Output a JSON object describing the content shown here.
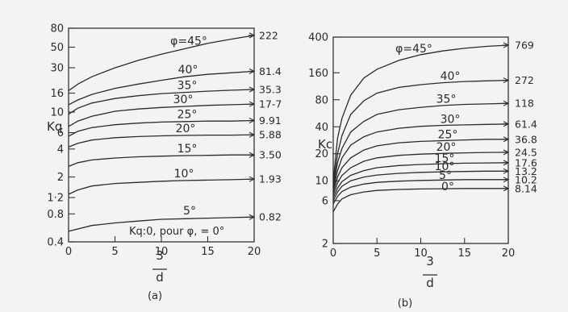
{
  "chart_data": [
    {
      "type": "line",
      "caption": "(a)",
      "ylabel": "Kq",
      "xlabel_num": "3",
      "xlabel_den": "d",
      "xlim": [
        0,
        20
      ],
      "ylim": [
        0.4,
        80
      ],
      "yscale": "log",
      "x_ticks": [
        "0",
        "5",
        "10",
        "15",
        "20"
      ],
      "y_ticks": [
        {
          "value": 80,
          "label": "80"
        },
        {
          "value": 50,
          "label": "50"
        },
        {
          "value": 30,
          "label": "30"
        },
        {
          "value": 16,
          "label": "16"
        },
        {
          "value": 10,
          "label": "10"
        },
        {
          "value": 6,
          "label": "6"
        },
        {
          "value": 4,
          "label": "4"
        },
        {
          "value": 2,
          "label": "2"
        },
        {
          "value": 1.2,
          "label": "1·2"
        },
        {
          "value": 0.8,
          "label": "0.8"
        },
        {
          "value": 0.4,
          "label": "0.4"
        }
      ],
      "series": [
        {
          "name": "φ=45°",
          "label": "φ=45°",
          "end_label": "222",
          "values": [
            [
              0,
              17
            ],
            [
              1,
              20
            ],
            [
              2.5,
              24
            ],
            [
              5,
              30
            ],
            [
              7.5,
              36
            ],
            [
              10,
              42
            ],
            [
              12.5,
              48
            ],
            [
              15,
              55
            ],
            [
              17.5,
              61
            ],
            [
              20,
              67
            ]
          ]
        },
        {
          "name": "40°",
          "label": "40°",
          "end_label": "81.4",
          "values": [
            [
              0,
              12
            ],
            [
              1,
              13.5
            ],
            [
              2.5,
              15.5
            ],
            [
              5,
              18
            ],
            [
              7.5,
              20
            ],
            [
              10,
              22
            ],
            [
              12.5,
              24
            ],
            [
              15,
              25.5
            ],
            [
              17.5,
              26.5
            ],
            [
              20,
              27.5
            ]
          ]
        },
        {
          "name": "35°",
          "label": "35°",
          "end_label": "35.3",
          "values": [
            [
              0,
              9.5
            ],
            [
              1,
              11
            ],
            [
              2.5,
              12.5
            ],
            [
              5,
              14
            ],
            [
              7.5,
              15
            ],
            [
              10,
              15.8
            ],
            [
              12.5,
              16.3
            ],
            [
              15,
              16.8
            ],
            [
              17.5,
              17.2
            ],
            [
              20,
              17.5
            ]
          ]
        },
        {
          "name": "30°",
          "label": "30°",
          "end_label": "17-7",
          "values": [
            [
              0,
              7
            ],
            [
              1,
              8
            ],
            [
              2.5,
              9
            ],
            [
              5,
              10.2
            ],
            [
              7.5,
              10.8
            ],
            [
              10,
              11.2
            ],
            [
              12.5,
              11.5
            ],
            [
              15,
              11.8
            ],
            [
              17.5,
              12
            ],
            [
              20,
              12.2
            ]
          ]
        },
        {
          "name": "25°",
          "label": "25°",
          "end_label": "9.91",
          "values": [
            [
              0,
              5.5
            ],
            [
              1,
              6.2
            ],
            [
              2.5,
              6.8
            ],
            [
              5,
              7.3
            ],
            [
              7.5,
              7.6
            ],
            [
              10,
              7.8
            ],
            [
              12.5,
              7.9
            ],
            [
              15,
              8
            ],
            [
              17.5,
              8
            ],
            [
              20,
              8.1
            ]
          ]
        },
        {
          "name": "20°",
          "label": "20°",
          "end_label": "5.88",
          "values": [
            [
              0,
              4.2
            ],
            [
              1,
              4.6
            ],
            [
              2.5,
              5
            ],
            [
              5,
              5.3
            ],
            [
              7.5,
              5.45
            ],
            [
              10,
              5.55
            ],
            [
              12.5,
              5.6
            ],
            [
              15,
              5.65
            ],
            [
              17.5,
              5.65
            ],
            [
              20,
              5.7
            ]
          ]
        },
        {
          "name": "15°",
          "label": "15°",
          "end_label": "3.50",
          "values": [
            [
              0,
              2.6
            ],
            [
              1,
              2.85
            ],
            [
              2.5,
              3.05
            ],
            [
              5,
              3.2
            ],
            [
              7.5,
              3.3
            ],
            [
              10,
              3.35
            ],
            [
              12.5,
              3.4
            ],
            [
              15,
              3.42
            ],
            [
              17.5,
              3.45
            ],
            [
              20,
              3.45
            ]
          ]
        },
        {
          "name": "10°",
          "label": "10°",
          "end_label": "1.93",
          "values": [
            [
              0,
              1.3
            ],
            [
              1,
              1.45
            ],
            [
              2.5,
              1.6
            ],
            [
              5,
              1.7
            ],
            [
              7.5,
              1.75
            ],
            [
              10,
              1.8
            ],
            [
              12.5,
              1.83
            ],
            [
              15,
              1.85
            ],
            [
              17.5,
              1.87
            ],
            [
              20,
              1.9
            ]
          ]
        },
        {
          "name": "5°",
          "label": "5°",
          "end_label": "0.82",
          "values": [
            [
              0,
              0.52
            ],
            [
              2.5,
              0.6
            ],
            [
              5,
              0.64
            ],
            [
              7.5,
              0.67
            ],
            [
              10,
              0.7
            ],
            [
              12.5,
              0.71
            ],
            [
              15,
              0.72
            ],
            [
              17.5,
              0.73
            ],
            [
              20,
              0.74
            ]
          ]
        }
      ],
      "annotation": "Kq:0, pour φ, = 0°"
    },
    {
      "type": "line",
      "caption": "(b)",
      "ylabel": "Kc",
      "xlabel_num": "3",
      "xlabel_den": "d",
      "xlim": [
        0,
        20
      ],
      "ylim": [
        2,
        400
      ],
      "yscale": "log",
      "x_ticks": [
        "0",
        "5",
        "10",
        "15",
        "20"
      ],
      "y_ticks": [
        {
          "value": 400,
          "label": "400"
        },
        {
          "value": 160,
          "label": "160"
        },
        {
          "value": 80,
          "label": "80"
        },
        {
          "value": 40,
          "label": "40"
        },
        {
          "value": 20,
          "label": "20"
        },
        {
          "value": 10,
          "label": "10"
        },
        {
          "value": 6,
          "label": "6"
        },
        {
          "value": 2,
          "label": "2"
        }
      ],
      "series": [
        {
          "name": "φ=45°",
          "label": "φ=45°",
          "end_label": "769",
          "values": [
            [
              0,
              10
            ],
            [
              0.5,
              30
            ],
            [
              1,
              50
            ],
            [
              2,
              90
            ],
            [
              3.5,
              140
            ],
            [
              5,
              175
            ],
            [
              7.5,
              220
            ],
            [
              10,
              255
            ],
            [
              12.5,
              280
            ],
            [
              15,
              300
            ],
            [
              17.5,
              315
            ],
            [
              20,
              325
            ]
          ]
        },
        {
          "name": "40°",
          "label": "40°",
          "end_label": "272",
          "values": [
            [
              0,
              9
            ],
            [
              0.5,
              20
            ],
            [
              1,
              32
            ],
            [
              2,
              55
            ],
            [
              3.5,
              78
            ],
            [
              5,
              95
            ],
            [
              7.5,
              110
            ],
            [
              10,
              118
            ],
            [
              12.5,
              124
            ],
            [
              15,
              128
            ],
            [
              17.5,
              130
            ],
            [
              20,
              132
            ]
          ]
        },
        {
          "name": "35°",
          "label": "35°",
          "end_label": "118",
          "values": [
            [
              0,
              8.5
            ],
            [
              0.5,
              16
            ],
            [
              1,
              23
            ],
            [
              2,
              35
            ],
            [
              3.5,
              46
            ],
            [
              5,
              55
            ],
            [
              7.5,
              62
            ],
            [
              10,
              66
            ],
            [
              12.5,
              69
            ],
            [
              15,
              71
            ],
            [
              17.5,
              72
            ],
            [
              20,
              73
            ]
          ]
        },
        {
          "name": "30°",
          "label": "30°",
          "end_label": "61.4",
          "values": [
            [
              0,
              8
            ],
            [
              0.5,
              13
            ],
            [
              1,
              18
            ],
            [
              2,
              25
            ],
            [
              3.5,
              31
            ],
            [
              5,
              35
            ],
            [
              7.5,
              38.5
            ],
            [
              10,
              40.5
            ],
            [
              12.5,
              41.5
            ],
            [
              15,
              42
            ],
            [
              17.5,
              42.5
            ],
            [
              20,
              43
            ]
          ]
        },
        {
          "name": "25°",
          "label": "25°",
          "end_label": "36.8",
          "values": [
            [
              0,
              7.5
            ],
            [
              0.5,
              11
            ],
            [
              1,
              14
            ],
            [
              2,
              18
            ],
            [
              3.5,
              22
            ],
            [
              5,
              24.5
            ],
            [
              7.5,
              26.5
            ],
            [
              10,
              27.5
            ],
            [
              12.5,
              28
            ],
            [
              15,
              28.5
            ],
            [
              17.5,
              29
            ],
            [
              20,
              29
            ]
          ]
        },
        {
          "name": "20°",
          "label": "20°",
          "end_label": "24.5",
          "values": [
            [
              0,
              7
            ],
            [
              0.5,
              9.5
            ],
            [
              1,
              11.5
            ],
            [
              2,
              14
            ],
            [
              3.5,
              16.5
            ],
            [
              5,
              18
            ],
            [
              7.5,
              19.2
            ],
            [
              10,
              19.8
            ],
            [
              12.5,
              20.2
            ],
            [
              15,
              20.5
            ],
            [
              17.5,
              20.7
            ],
            [
              20,
              20.8
            ]
          ]
        },
        {
          "name": "15°",
          "label": "15°",
          "end_label": "17.6",
          "values": [
            [
              0,
              6.5
            ],
            [
              0.5,
              8.3
            ],
            [
              1,
              9.8
            ],
            [
              2,
              11.5
            ],
            [
              3.5,
              13
            ],
            [
              5,
              14
            ],
            [
              7.5,
              14.8
            ],
            [
              10,
              15.2
            ],
            [
              12.5,
              15.5
            ],
            [
              15,
              15.7
            ],
            [
              17.5,
              15.8
            ],
            [
              20,
              15.9
            ]
          ]
        },
        {
          "name": "10°",
          "label": "10°",
          "end_label": "13.2",
          "values": [
            [
              0,
              6
            ],
            [
              0.5,
              7.5
            ],
            [
              1,
              8.7
            ],
            [
              2,
              10
            ],
            [
              3.5,
              11
            ],
            [
              5,
              11.6
            ],
            [
              7.5,
              12.1
            ],
            [
              10,
              12.4
            ],
            [
              12.5,
              12.6
            ],
            [
              15,
              12.7
            ],
            [
              17.5,
              12.8
            ],
            [
              20,
              12.8
            ]
          ]
        },
        {
          "name": "5°",
          "label": "5°",
          "end_label": "10.2",
          "values": [
            [
              0,
              5.5
            ],
            [
              0.5,
              6.7
            ],
            [
              1,
              7.6
            ],
            [
              2,
              8.5
            ],
            [
              3.5,
              9.2
            ],
            [
              5,
              9.6
            ],
            [
              7.5,
              9.9
            ],
            [
              10,
              10.1
            ],
            [
              12.5,
              10.2
            ],
            [
              15,
              10.3
            ],
            [
              17.5,
              10.3
            ],
            [
              20,
              10.3
            ]
          ]
        },
        {
          "name": "0°",
          "label": "0°",
          "end_label": "8.14",
          "values": [
            [
              0,
              4.5
            ],
            [
              0.5,
              5.5
            ],
            [
              1,
              6.3
            ],
            [
              2,
              7
            ],
            [
              3.5,
              7.5
            ],
            [
              5,
              7.8
            ],
            [
              7.5,
              8
            ],
            [
              10,
              8.1
            ],
            [
              12.5,
              8.15
            ],
            [
              15,
              8.2
            ],
            [
              17.5,
              8.2
            ],
            [
              20,
              8.2
            ]
          ]
        }
      ]
    }
  ]
}
